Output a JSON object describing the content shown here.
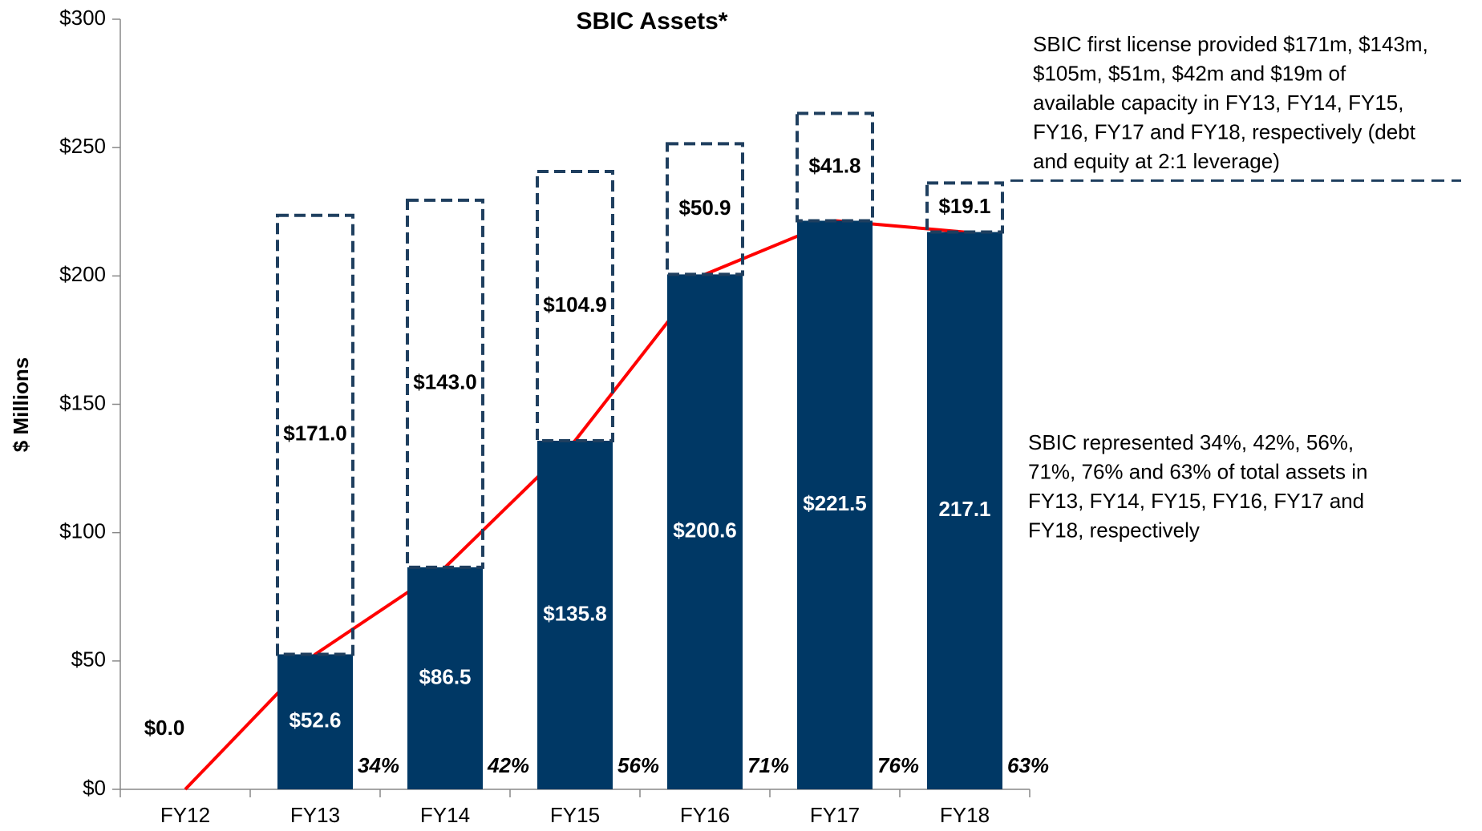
{
  "chart_data": {
    "type": "stacked_bar",
    "title": "SBIC Assets*",
    "y_label": "$ Millions",
    "categories": [
      "FY12",
      "FY13",
      "FY14",
      "FY15",
      "FY16",
      "FY17",
      "FY18"
    ],
    "series": [
      {
        "name": "SBIC Assets",
        "color": "#003865",
        "values": [
          0.0,
          52.6,
          86.5,
          135.8,
          200.6,
          221.5,
          217.1
        ],
        "value_labels": [
          "$0.0",
          "$52.6",
          "$86.5",
          "$135.8",
          "$200.6",
          "$221.5",
          "217.1"
        ]
      },
      {
        "name": "Available Capacity",
        "color": "#1f3f5f",
        "style": "dashed",
        "values": [
          null,
          171.0,
          143.0,
          104.9,
          50.9,
          41.8,
          19.1
        ],
        "value_labels": [
          null,
          "$171.0",
          "$143.0",
          "$104.9",
          "$50.9",
          "$41.8",
          "$19.1"
        ]
      }
    ],
    "line_color": "#ff0000",
    "share_labels": [
      null,
      "34%",
      "42%",
      "56%",
      "71%",
      "76%",
      "63%"
    ],
    "ylim": [
      0,
      300
    ],
    "yticks": [
      {
        "value": 0,
        "label": "$0"
      },
      {
        "value": 50,
        "label": "$50"
      },
      {
        "value": 100,
        "label": "$100"
      },
      {
        "value": 150,
        "label": "$150"
      },
      {
        "value": 200,
        "label": "$200"
      },
      {
        "value": 250,
        "label": "$250"
      },
      {
        "value": 300,
        "label": "$300"
      }
    ],
    "annotations": [
      [
        "SBIC first license provided $171m, $143m,",
        "$105m, $51m, $42m and $19m of",
        "available capacity in FY13, FY14, FY15,",
        "FY16, FY17 and FY18, respectively (debt",
        "and equity at 2:1 leverage)"
      ],
      [
        "SBIC represented 34%, 42%, 56%,",
        "71%, 76% and 63% of total assets in",
        "FY13, FY14, FY15, FY16, FY17 and",
        "FY18, respectively"
      ]
    ]
  }
}
